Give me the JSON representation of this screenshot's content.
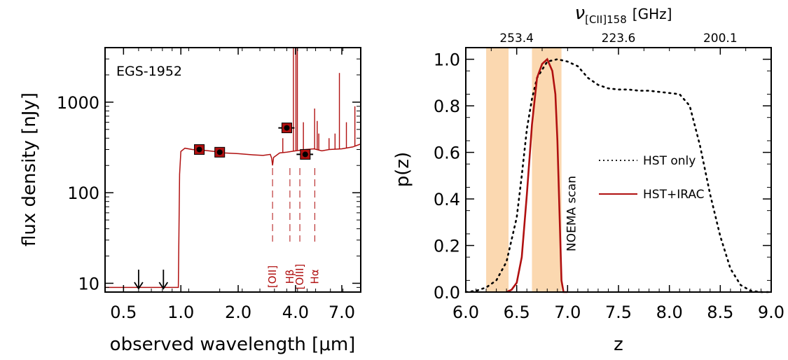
{
  "colors": {
    "sed": "#b01010",
    "hst_only": "#000000",
    "noema_band": "#fbd8b0",
    "noema_label": "#f5b56a",
    "frame": "#000000"
  },
  "chart_data": [
    {
      "type": "line",
      "title": "",
      "annotation": "EGS-1952",
      "xlabel": "observed wavelength [μm]",
      "ylabel": "flux density [nJy]",
      "xscale": "log",
      "yscale": "log",
      "xlim": [
        0.4,
        8.8
      ],
      "ylim": [
        8,
        4000
      ],
      "xticks": [
        {
          "value": 0.5,
          "label": "0.5"
        },
        {
          "value": 1.0,
          "label": "1.0"
        },
        {
          "value": 2.0,
          "label": "2.0"
        },
        {
          "value": 4.0,
          "label": "4.0"
        },
        {
          "value": 7.0,
          "label": "7.0"
        }
      ],
      "yticks": [
        {
          "value": 10,
          "label": "10"
        },
        {
          "value": 100,
          "label": "100"
        },
        {
          "value": 1000,
          "label": "1000"
        }
      ],
      "sed_continuum": [
        [
          0.4,
          9
        ],
        [
          0.97,
          9
        ],
        [
          0.985,
          160
        ],
        [
          1.0,
          285
        ],
        [
          1.05,
          310
        ],
        [
          1.15,
          300
        ],
        [
          1.3,
          295
        ],
        [
          1.5,
          285
        ],
        [
          1.7,
          275
        ],
        [
          2.0,
          270
        ],
        [
          2.4,
          262
        ],
        [
          2.7,
          258
        ],
        [
          2.95,
          265
        ],
        [
          3.0,
          240
        ],
        [
          3.03,
          200
        ],
        [
          3.07,
          245
        ],
        [
          3.3,
          275
        ],
        [
          3.6,
          280
        ],
        [
          4.0,
          290
        ],
        [
          4.5,
          300
        ],
        [
          5.0,
          305
        ],
        [
          5.5,
          290
        ],
        [
          6.0,
          300
        ],
        [
          7.0,
          305
        ],
        [
          8.0,
          320
        ],
        [
          8.8,
          345
        ]
      ],
      "emission_lines": [
        {
          "wavelength": 3.43,
          "peak": 400
        },
        {
          "wavelength": 3.9,
          "peak": 4000
        },
        {
          "wavelength": 4.02,
          "peak": 4000
        },
        {
          "wavelength": 4.09,
          "peak": 4000
        },
        {
          "wavelength": 4.4,
          "peak": 600
        },
        {
          "wavelength": 5.04,
          "peak": 850
        },
        {
          "wavelength": 5.2,
          "peak": 620
        },
        {
          "wavelength": 5.3,
          "peak": 450
        },
        {
          "wavelength": 6.0,
          "peak": 400
        },
        {
          "wavelength": 6.45,
          "peak": 450
        },
        {
          "wavelength": 6.8,
          "peak": 2100
        },
        {
          "wavelength": 7.4,
          "peak": 600
        },
        {
          "wavelength": 8.2,
          "peak": 900
        }
      ],
      "photometry": [
        {
          "wavelength": 1.25,
          "flux": 300,
          "xerr": 0
        },
        {
          "wavelength": 1.6,
          "flux": 280,
          "xerr": 0
        },
        {
          "wavelength": 3.6,
          "flux": 520,
          "xerr": 0.35
        },
        {
          "wavelength": 4.5,
          "flux": 265,
          "xerr": 0.45
        }
      ],
      "upper_limits": [
        {
          "wavelength": 0.6,
          "flux": 14
        },
        {
          "wavelength": 0.81,
          "flux": 14
        }
      ],
      "line_markers": [
        {
          "wavelength": 3.03,
          "label": "[OII]"
        },
        {
          "wavelength": 3.9,
          "label": "Hβ"
        },
        {
          "wavelength": 4.04,
          "label": "[OIII]"
        },
        {
          "wavelength": 5.05,
          "label": "Hα"
        }
      ]
    },
    {
      "type": "line",
      "title": "",
      "xlabel": "z",
      "ylabel": "p(z)",
      "top_axis_label": "ν[CII]158 [GHz]",
      "top_axis_main": "ν",
      "top_axis_sub": "[CII]158",
      "top_axis_unit": "[GHz]",
      "xlim": [
        6.0,
        9.0
      ],
      "ylim": [
        0.0,
        1.05
      ],
      "xticks": [
        {
          "value": 6.0,
          "label": "6.0"
        },
        {
          "value": 6.5,
          "label": "6.5"
        },
        {
          "value": 7.0,
          "label": "7.0"
        },
        {
          "value": 7.5,
          "label": "7.5"
        },
        {
          "value": 8.0,
          "label": "8.0"
        },
        {
          "value": 8.5,
          "label": "8.5"
        },
        {
          "value": 9.0,
          "label": "9.0"
        }
      ],
      "yticks": [
        {
          "value": 0.0,
          "label": "0.0"
        },
        {
          "value": 0.2,
          "label": "0.2"
        },
        {
          "value": 0.4,
          "label": "0.4"
        },
        {
          "value": 0.6,
          "label": "0.6"
        },
        {
          "value": 0.8,
          "label": "0.8"
        },
        {
          "value": 1.0,
          "label": "1.0"
        }
      ],
      "top_ticks": [
        {
          "z": 6.5,
          "label": "253.4"
        },
        {
          "z": 7.5,
          "label": "223.6"
        },
        {
          "z": 8.5,
          "label": "200.1"
        }
      ],
      "noema_bands": [
        [
          6.2,
          6.42
        ],
        [
          6.65,
          6.94
        ]
      ],
      "noema_label": "NOEMA scan",
      "legend": [
        {
          "name": "HST only",
          "style": "dotted"
        },
        {
          "name": "HST+IRAC",
          "style": "solid"
        }
      ],
      "series": [
        {
          "name": "HST only",
          "x": [
            6.0,
            6.1,
            6.2,
            6.3,
            6.4,
            6.5,
            6.55,
            6.6,
            6.65,
            6.7,
            6.8,
            6.9,
            7.0,
            7.1,
            7.2,
            7.3,
            7.4,
            7.5,
            7.6,
            7.7,
            7.8,
            7.9,
            8.0,
            8.1,
            8.2,
            8.3,
            8.4,
            8.5,
            8.6,
            8.7,
            8.8,
            8.9,
            9.0
          ],
          "y": [
            0.0,
            0.005,
            0.02,
            0.05,
            0.13,
            0.32,
            0.5,
            0.7,
            0.83,
            0.92,
            0.99,
            1.0,
            0.99,
            0.97,
            0.92,
            0.89,
            0.875,
            0.87,
            0.87,
            0.865,
            0.865,
            0.86,
            0.855,
            0.85,
            0.8,
            0.63,
            0.42,
            0.24,
            0.1,
            0.03,
            0.005,
            0.0,
            0.0
          ]
        },
        {
          "name": "HST+IRAC",
          "x": [
            6.4,
            6.45,
            6.5,
            6.55,
            6.6,
            6.65,
            6.7,
            6.75,
            6.8,
            6.85,
            6.88,
            6.9,
            6.92,
            6.94,
            6.96,
            7.0
          ],
          "y": [
            0.0,
            0.01,
            0.04,
            0.15,
            0.42,
            0.72,
            0.92,
            0.98,
            1.0,
            0.95,
            0.85,
            0.65,
            0.35,
            0.05,
            0.0,
            0.0
          ]
        }
      ]
    }
  ]
}
